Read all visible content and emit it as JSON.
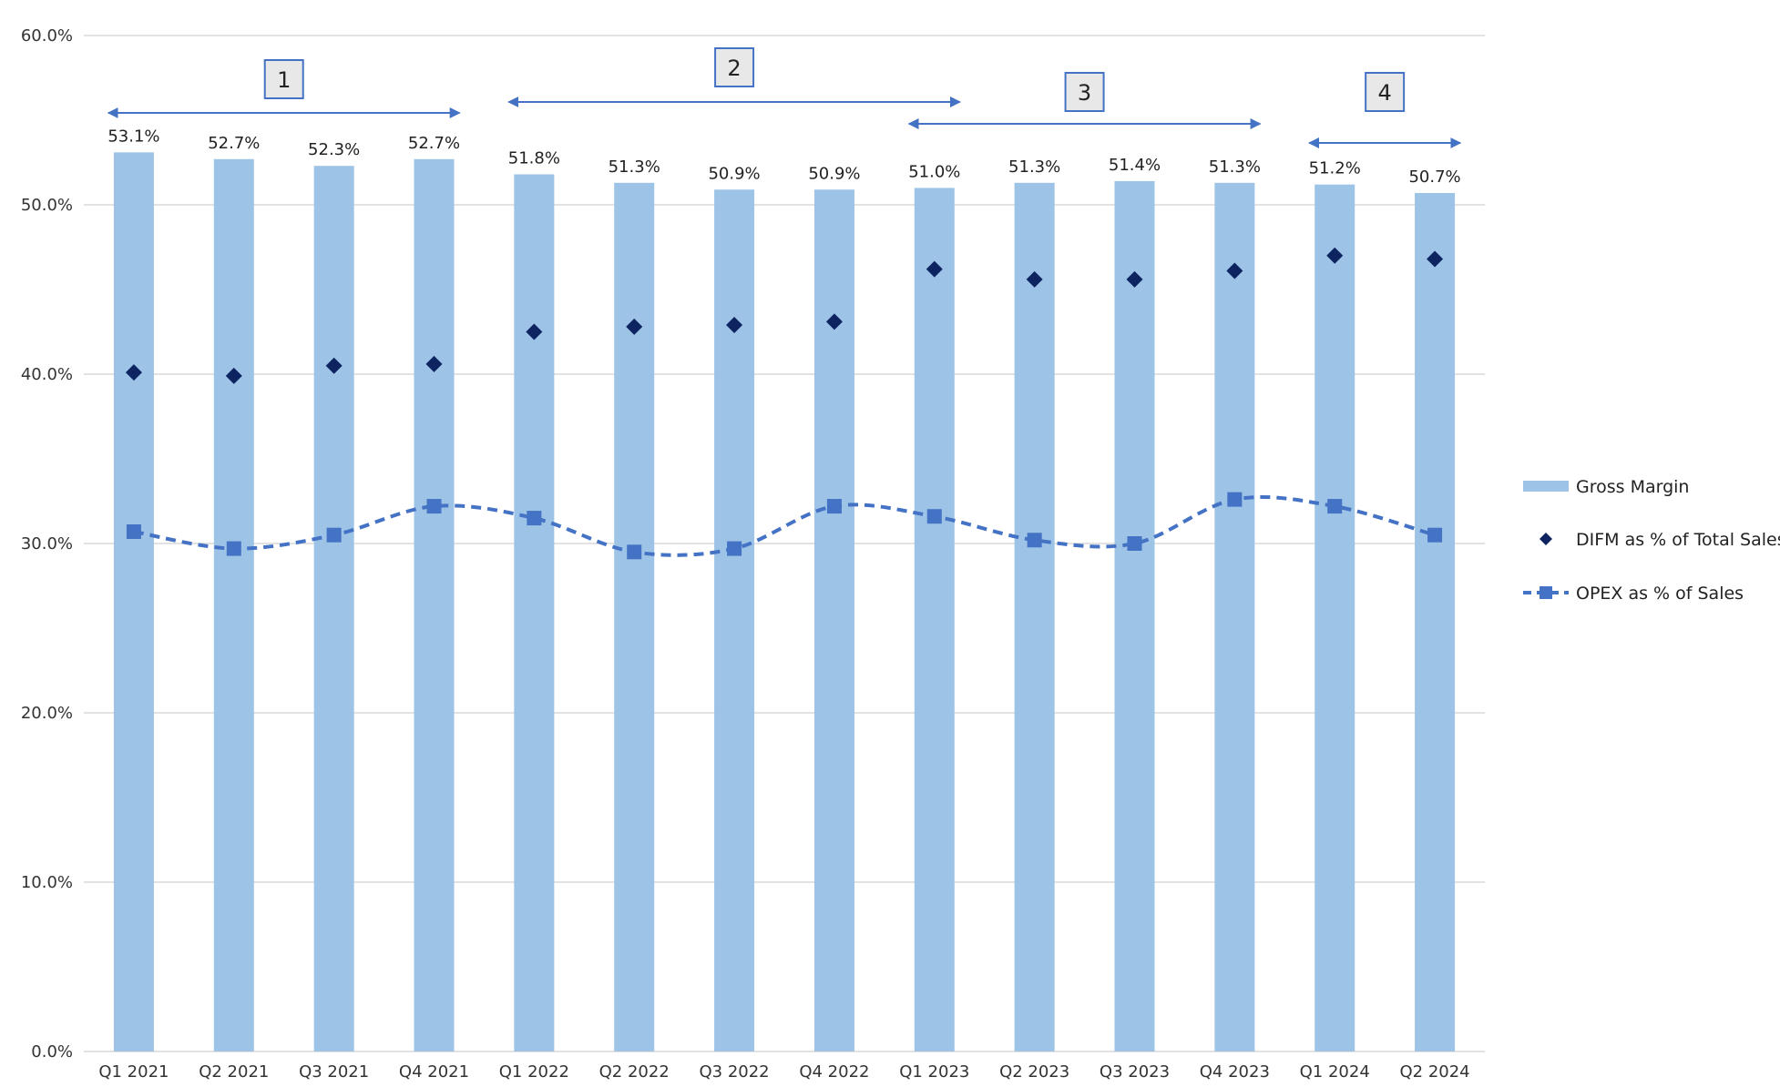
{
  "chart_data": {
    "type": "bar",
    "categories": [
      "Q1 2021",
      "Q2 2021",
      "Q3 2021",
      "Q4 2021",
      "Q1 2022",
      "Q2 2022",
      "Q3 2022",
      "Q4 2022",
      "Q1 2023",
      "Q2 2023",
      "Q3 2023",
      "Q4 2023",
      "Q1 2024",
      "Q2 2024"
    ],
    "series": [
      {
        "name": "Gross Margin",
        "kind": "bar",
        "color": "#9dc3e6",
        "values": [
          53.1,
          52.7,
          52.3,
          52.7,
          51.8,
          51.3,
          50.9,
          50.9,
          51.0,
          51.3,
          51.4,
          51.3,
          51.2,
          50.7
        ],
        "labels": [
          "53.1%",
          "52.7%",
          "52.3%",
          "52.7%",
          "51.8%",
          "51.3%",
          "50.9%",
          "50.9%",
          "51.0%",
          "51.3%",
          "51.4%",
          "51.3%",
          "51.2%",
          "50.7%"
        ]
      },
      {
        "name": "DIFM as % of Total Sales",
        "kind": "scatter",
        "marker": "diamond",
        "color": "#0d2461",
        "values": [
          40.1,
          39.9,
          40.5,
          40.6,
          42.5,
          42.8,
          42.9,
          43.1,
          46.2,
          45.6,
          45.6,
          46.1,
          47.0,
          46.8
        ]
      },
      {
        "name": "OPEX as % of Sales",
        "kind": "line",
        "line_style": "dashed-smooth",
        "marker": "square",
        "color": "#4472c4",
        "values": [
          30.7,
          29.7,
          30.5,
          32.2,
          31.5,
          29.5,
          29.7,
          32.2,
          31.6,
          30.2,
          30.0,
          32.6,
          32.2,
          30.5
        ]
      }
    ],
    "ylim": [
      0,
      60
    ],
    "yticks": [
      "0.0%",
      "10.0%",
      "20.0%",
      "30.0%",
      "40.0%",
      "50.0%",
      "60.0%"
    ],
    "grid": true,
    "legend_position": "right",
    "title": "",
    "xlabel": "",
    "ylabel": "",
    "annotations": [
      {
        "label": "1",
        "from": "Q1 2021",
        "to": "Q4 2021"
      },
      {
        "label": "2",
        "from": "Q1 2022",
        "to": "Q1 2023"
      },
      {
        "label": "3",
        "from": "Q1 2023",
        "to": "Q4 2023"
      },
      {
        "label": "4",
        "from": "Q1 2024",
        "to": "Q2 2024"
      }
    ]
  }
}
